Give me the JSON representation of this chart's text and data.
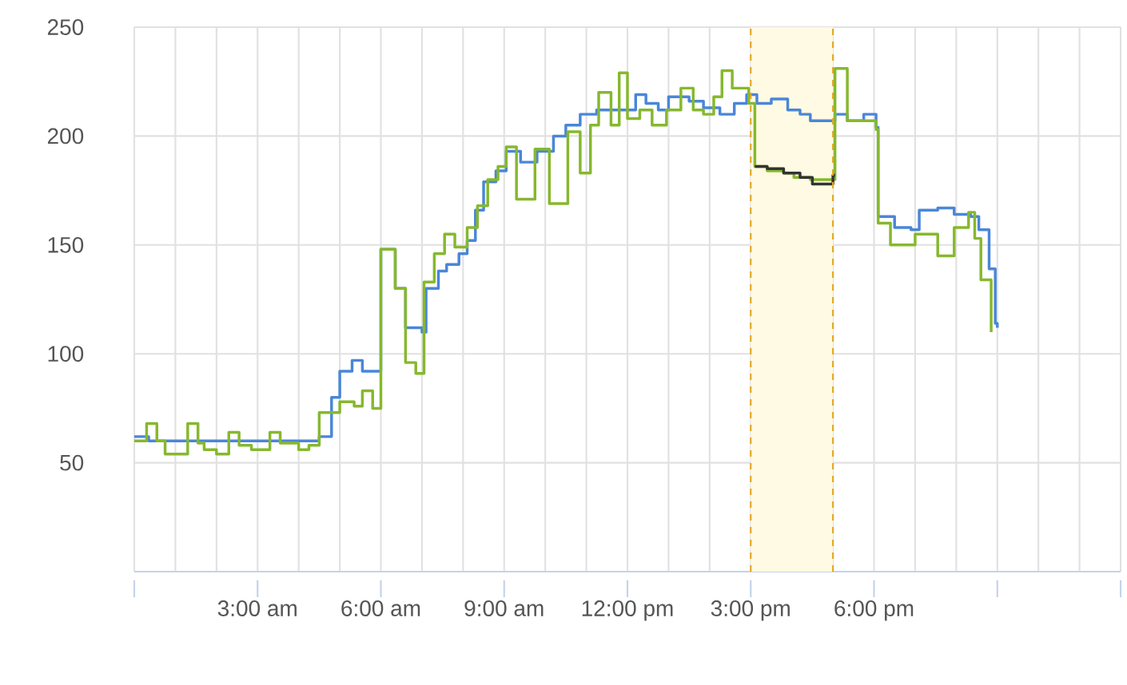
{
  "chart_data": {
    "type": "step",
    "xlim": [
      0,
      24
    ],
    "ylim": [
      0,
      250
    ],
    "yticks": [
      50,
      100,
      150,
      200,
      250
    ],
    "xticks": [
      {
        "value": 0,
        "label": null
      },
      {
        "value": 3,
        "label": "3:00 am"
      },
      {
        "value": 6,
        "label": "6:00 am"
      },
      {
        "value": 9,
        "label": "9:00 am"
      },
      {
        "value": 12,
        "label": "12:00 pm"
      },
      {
        "value": 15,
        "label": "3:00 pm"
      },
      {
        "value": 18,
        "label": "6:00 pm"
      },
      {
        "value": 21,
        "label": null
      },
      {
        "value": 24,
        "label": null
      }
    ],
    "grid": true,
    "bands": [
      {
        "axis": "x",
        "from": 15,
        "to": 17,
        "color": "#fffae3"
      }
    ],
    "ref_lines": [
      {
        "axis": "x",
        "value": 15,
        "color": "#e6a722",
        "line_style": "dashed"
      },
      {
        "axis": "x",
        "value": 17,
        "color": "#e6a722",
        "line_style": "dashed"
      }
    ],
    "series": [
      {
        "color": "#4a86d8",
        "x": [
          0,
          0.35,
          4.5,
          4.8,
          5.0,
          5.3,
          5.55,
          6.0,
          6.35,
          6.6,
          7.0,
          7.1,
          7.4,
          7.6,
          7.9,
          8.1,
          8.3,
          8.5,
          8.8,
          9.05,
          9.4,
          9.8,
          10.2,
          10.5,
          10.85,
          11.25,
          11.6,
          12.2,
          12.45,
          12.75,
          13.0,
          13.5,
          13.85,
          14.25,
          14.6,
          14.9,
          15.15,
          15.5,
          15.9,
          16.2,
          16.45,
          16.7,
          17.05,
          17.35,
          17.75,
          18.05,
          18.1,
          18.5,
          18.9,
          19.1,
          19.55,
          19.95,
          20.35,
          20.55,
          20.8,
          20.95,
          21.0
        ],
        "values": [
          62,
          60,
          62,
          80,
          92,
          97,
          92,
          148,
          130,
          112,
          110,
          130,
          138,
          141,
          146,
          152,
          166,
          179,
          184,
          193,
          188,
          193,
          200,
          205,
          210,
          212,
          212,
          219,
          215,
          212,
          218,
          216,
          213,
          210,
          215,
          219,
          215,
          217,
          212,
          210,
          207,
          207,
          210,
          207,
          210,
          204,
          163,
          158,
          157,
          166,
          167,
          164,
          163,
          157,
          139,
          114,
          112
        ]
      },
      {
        "color": "#86b82e",
        "x": [
          0,
          0.3,
          0.55,
          0.75,
          1.3,
          1.55,
          1.7,
          2.0,
          2.3,
          2.55,
          2.85,
          3.3,
          3.55,
          4.0,
          4.25,
          4.5,
          5.0,
          5.35,
          5.55,
          5.8,
          6.0,
          6.35,
          6.6,
          6.85,
          7.05,
          7.3,
          7.55,
          7.8,
          8.1,
          8.35,
          8.6,
          8.85,
          9.05,
          9.3,
          9.75,
          10.1,
          10.55,
          10.85,
          11.1,
          11.3,
          11.6,
          11.8,
          12.0,
          12.3,
          12.6,
          12.95,
          13.3,
          13.6,
          13.85,
          14.1,
          14.3,
          14.55,
          14.95,
          15.1,
          15.4,
          15.8,
          16.05,
          16.45,
          17.05,
          17.35,
          18.05,
          18.1,
          18.4,
          18.6,
          19.0,
          19.55,
          19.95,
          20.3,
          20.45,
          20.6,
          20.85
        ],
        "values": [
          60,
          68,
          60,
          54,
          68,
          59,
          56,
          54,
          64,
          58,
          56,
          64,
          59,
          56,
          58,
          73,
          78,
          76,
          83,
          75,
          148,
          130,
          96,
          91,
          133,
          146,
          155,
          149,
          158,
          168,
          180,
          186,
          195,
          171,
          194,
          169,
          202,
          183,
          205,
          220,
          205,
          229,
          208,
          212,
          205,
          212,
          222,
          212,
          210,
          218,
          230,
          222,
          215,
          186,
          184,
          183,
          181,
          180,
          231,
          207,
          203,
          160,
          150,
          150,
          155,
          145,
          158,
          165,
          153,
          134,
          110
        ]
      },
      {
        "color": "#333333",
        "x": [
          15.1,
          15.4,
          15.8,
          16.2,
          16.5,
          17.0,
          17.05
        ],
        "values": [
          186,
          185,
          183,
          181,
          178,
          182,
          182
        ]
      }
    ]
  }
}
